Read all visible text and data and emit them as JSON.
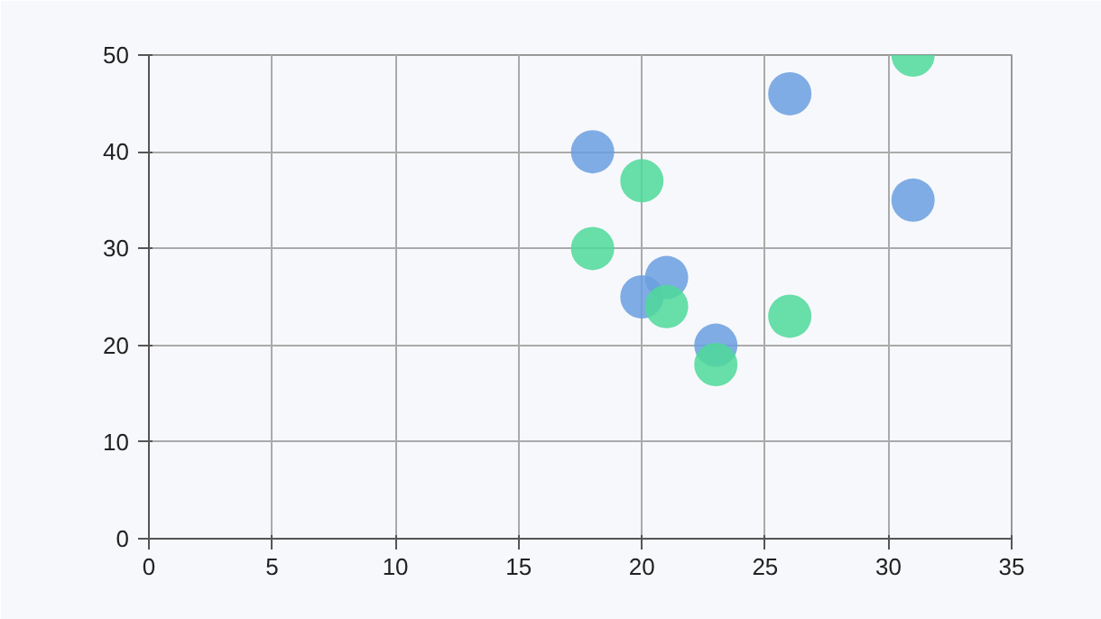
{
  "chart_data": {
    "type": "scatter",
    "marker": "circle",
    "grid": true,
    "xlim": [
      0,
      35
    ],
    "ylim": [
      0,
      50
    ],
    "xticks": [
      0,
      5,
      10,
      15,
      20,
      25,
      30,
      35
    ],
    "yticks": [
      0,
      10,
      20,
      30,
      40,
      50
    ],
    "series": [
      {
        "color": "#6a9fdf",
        "x": [
          18,
          26,
          31,
          20,
          21,
          23
        ],
        "values": [
          40,
          46,
          35,
          25,
          27,
          20
        ]
      },
      {
        "color": "#4fd99a",
        "x": [
          31,
          20,
          18,
          21,
          23,
          26
        ],
        "values": [
          50,
          37,
          30,
          24,
          18,
          23
        ]
      }
    ]
  }
}
